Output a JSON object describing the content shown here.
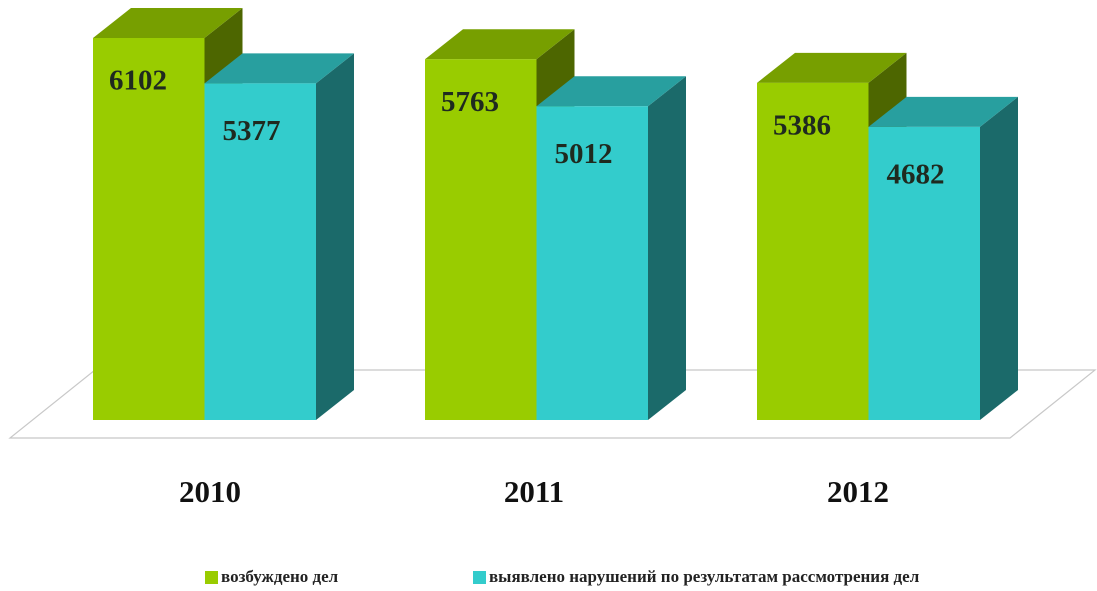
{
  "chart_data": {
    "type": "bar3d",
    "categories": [
      "2010",
      "2011",
      "2012"
    ],
    "series": [
      {
        "name": "возбуждено дел",
        "color": "#99cc00",
        "values": [
          6102,
          5763,
          5386
        ]
      },
      {
        "name": "выявлено нарушений по результатам рассмотрения дел",
        "color": "#33cccc",
        "values": [
          5377,
          5012,
          4682
        ]
      }
    ]
  }
}
